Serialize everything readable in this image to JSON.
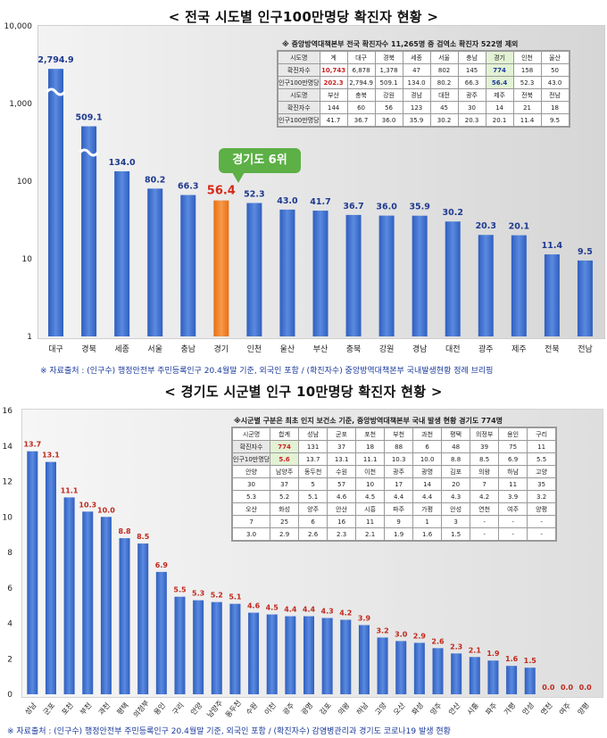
{
  "titles": {
    "top": "< 전국 시도별 인구100만명당 확진자 현황 >",
    "bottom": "< 경기도 시군별 인구 10만명당 확진자 현황 >"
  },
  "sources": {
    "top": "※ 자료출처 : (인구수) 행정안전부 주민등록인구 20.4월말 기준, 외국인 포함 / (확진자수) 중앙방역대책본부 국내발생현황 정례 브리핑",
    "bottom": "※ 자료출처 : (인구수) 행정안전부 주민등록인구 20.4월말 기준, 외국인 포함 / (확진자수) 감염병관리과 경기도 코로나19 발생 현황"
  },
  "callout": "경기도 6위",
  "colors": {
    "bar": "#3f6fcf",
    "highlight": "#f07f22",
    "top_label": "#1f3a8f",
    "bottom_label": "#c0281c"
  },
  "chart_data": [
    {
      "type": "bar",
      "yscale": "log",
      "ylim": [
        1,
        10000
      ],
      "yticks": [
        "1",
        "10",
        "100",
        "1,000",
        "10,000"
      ],
      "categories": [
        "대구",
        "경북",
        "세종",
        "서울",
        "충남",
        "경기",
        "인천",
        "울산",
        "부산",
        "충북",
        "강원",
        "경남",
        "대전",
        "광주",
        "제주",
        "전북",
        "전남"
      ],
      "values": [
        2794.9,
        509.1,
        134.0,
        80.2,
        66.3,
        56.4,
        52.3,
        43.0,
        41.7,
        36.7,
        36.0,
        35.9,
        30.2,
        20.3,
        20.1,
        11.4,
        9.5
      ],
      "labels": [
        "2,794.9",
        "509.1",
        "134.0",
        "80.2",
        "66.3",
        "56.4",
        "52.3",
        "43.0",
        "41.7",
        "36.7",
        "36.0",
        "35.9",
        "30.2",
        "20.3",
        "20.1",
        "11.4",
        "9.5"
      ],
      "highlight": "경기",
      "table": {
        "note": "※ 중앙방역대책본부 전국 확진자수 11,265명 중 검역소 확진자 522명 제외",
        "header1": [
          "시도명",
          "계",
          "대구",
          "경북",
          "세종",
          "서울",
          "충남",
          "경기",
          "인천",
          "울산"
        ],
        "row1a": [
          "확진자수",
          "10,743",
          "6,878",
          "1,378",
          "47",
          "802",
          "145",
          "774",
          "158",
          "50"
        ],
        "row1b": [
          "인구100만명당",
          "202.3",
          "2,794.9",
          "509.1",
          "134.0",
          "80.2",
          "66.3",
          "56.4",
          "52.3",
          "43.0"
        ],
        "header2": [
          "시도명",
          "부산",
          "충북",
          "강원",
          "경남",
          "대전",
          "광주",
          "제주",
          "전북",
          "전남"
        ],
        "row2a": [
          "확진자수",
          "144",
          "60",
          "56",
          "123",
          "45",
          "30",
          "14",
          "21",
          "18"
        ],
        "row2b": [
          "인구100만명당",
          "41.7",
          "36.7",
          "36.0",
          "35.9",
          "30.2",
          "20.3",
          "20.1",
          "11.4",
          "9.5"
        ]
      }
    },
    {
      "type": "bar",
      "ylim": [
        0,
        16
      ],
      "yticks": [
        "0",
        "2",
        "4",
        "6",
        "8",
        "10",
        "12",
        "14",
        "16"
      ],
      "categories": [
        "성남",
        "군포",
        "포천",
        "부천",
        "과천",
        "평택",
        "의정부",
        "용인",
        "구리",
        "안양",
        "남양주",
        "동두천",
        "수원",
        "이천",
        "광주",
        "광명",
        "김포",
        "의왕",
        "하남",
        "고양",
        "오산",
        "화성",
        "양주",
        "안산",
        "시흥",
        "파주",
        "가평",
        "안성",
        "연천",
        "여주",
        "양평"
      ],
      "values": [
        13.7,
        13.1,
        11.1,
        10.3,
        10.0,
        8.8,
        8.5,
        6.9,
        5.5,
        5.3,
        5.2,
        5.1,
        4.6,
        4.5,
        4.4,
        4.4,
        4.3,
        4.2,
        3.9,
        3.2,
        3.0,
        2.9,
        2.6,
        2.3,
        2.1,
        1.9,
        1.6,
        1.5,
        0.0,
        0.0,
        0.0
      ],
      "table": {
        "note": "※시군별 구분은 최초 인지 보건소 기준, 중앙방역대책본부 국내 발생 현황 경기도 774명",
        "header1": [
          "시군명",
          "합계",
          "성남",
          "군포",
          "포천",
          "부천",
          "과천",
          "평택",
          "의정부",
          "용인",
          "구리"
        ],
        "row1a": [
          "확진자수",
          "774",
          "131",
          "37",
          "18",
          "88",
          "6",
          "48",
          "39",
          "75",
          "11"
        ],
        "row1b": [
          "인구10만명당",
          "5.6",
          "13.7",
          "13.1",
          "11.1",
          "10.3",
          "10.0",
          "8.8",
          "8.5",
          "6.9",
          "5.5"
        ],
        "header2": [
          "안양",
          "남양주",
          "동두천",
          "수원",
          "이천",
          "광주",
          "광명",
          "김포",
          "의왕",
          "하남",
          "고양"
        ],
        "row2a": [
          "30",
          "37",
          "5",
          "57",
          "10",
          "17",
          "14",
          "20",
          "7",
          "11",
          "35"
        ],
        "row2b": [
          "5.3",
          "5.2",
          "5.1",
          "4.6",
          "4.5",
          "4.4",
          "4.4",
          "4.3",
          "4.2",
          "3.9",
          "3.2"
        ],
        "header3": [
          "오산",
          "화성",
          "양주",
          "안산",
          "시흥",
          "파주",
          "가평",
          "안성",
          "연천",
          "여주",
          "양평"
        ],
        "row3a": [
          "7",
          "25",
          "6",
          "16",
          "11",
          "9",
          "1",
          "3",
          "-",
          "-",
          "-"
        ],
        "row3b": [
          "3.0",
          "2.9",
          "2.6",
          "2.3",
          "2.1",
          "1.9",
          "1.6",
          "1.5",
          "-",
          "-",
          "-"
        ]
      }
    }
  ]
}
